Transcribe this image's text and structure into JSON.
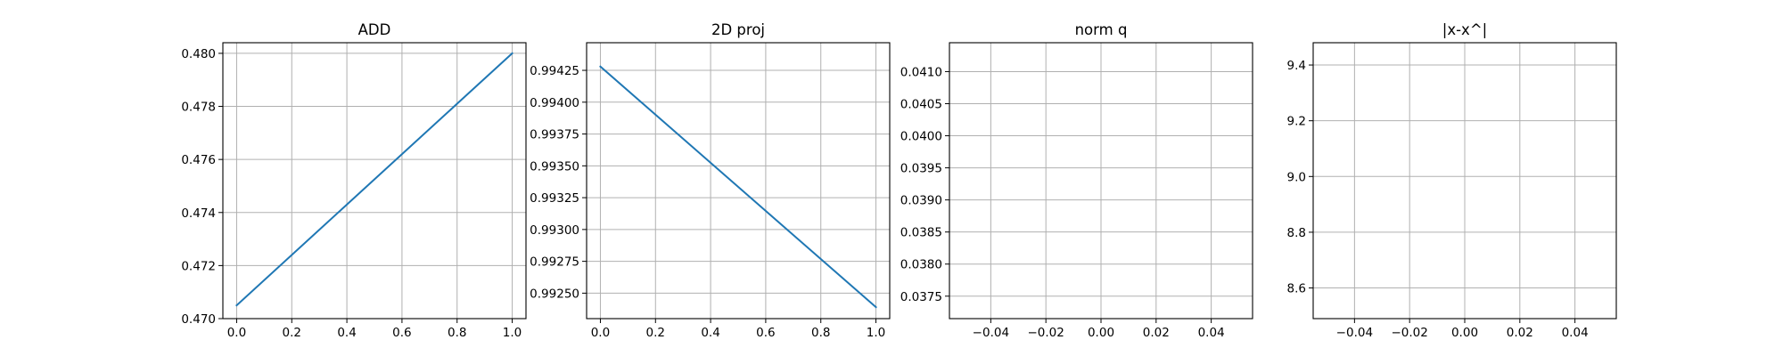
{
  "chart_data": [
    {
      "type": "line",
      "title": "ADD",
      "xlabel": "",
      "ylabel": "",
      "grid": true,
      "xlim": [
        -0.05,
        1.05
      ],
      "ylim": [
        0.47,
        0.4804
      ],
      "xticks": [
        0.0,
        0.2,
        0.4,
        0.6,
        0.8,
        1.0
      ],
      "xtick_labels": [
        "0.0",
        "0.2",
        "0.4",
        "0.6",
        "0.8",
        "1.0"
      ],
      "yticks": [
        0.47,
        0.472,
        0.474,
        0.476,
        0.478,
        0.48
      ],
      "ytick_labels": [
        "0.470",
        "0.472",
        "0.474",
        "0.476",
        "0.478",
        "0.480"
      ],
      "series": [
        {
          "color": "#1f77b4",
          "x": [
            0,
            1
          ],
          "y": [
            0.4705,
            0.48
          ]
        }
      ]
    },
    {
      "type": "line",
      "title": "2D proj",
      "xlabel": "",
      "ylabel": "",
      "grid": true,
      "xlim": [
        -0.05,
        1.05
      ],
      "ylim": [
        0.9923,
        0.994467
      ],
      "xticks": [
        0.0,
        0.2,
        0.4,
        0.6,
        0.8,
        1.0
      ],
      "xtick_labels": [
        "0.0",
        "0.2",
        "0.4",
        "0.6",
        "0.8",
        "1.0"
      ],
      "yticks": [
        0.9925,
        0.99275,
        0.993,
        0.99325,
        0.9935,
        0.99375,
        0.994,
        0.99425
      ],
      "ytick_labels": [
        "0.99250",
        "0.99275",
        "0.99300",
        "0.99325",
        "0.99350",
        "0.99375",
        "0.99400",
        "0.99425"
      ],
      "series": [
        {
          "color": "#1f77b4",
          "x": [
            0,
            1
          ],
          "y": [
            0.99428,
            0.99239
          ]
        }
      ]
    },
    {
      "type": "line",
      "title": "norm q",
      "xlabel": "",
      "ylabel": "",
      "grid": true,
      "xlim": [
        -0.055,
        0.055
      ],
      "ylim": [
        0.03715,
        0.04145
      ],
      "xticks": [
        -0.04,
        -0.02,
        0.0,
        0.02,
        0.04
      ],
      "xtick_labels": [
        "−0.04",
        "−0.02",
        "0.00",
        "0.02",
        "0.04"
      ],
      "yticks": [
        0.0375,
        0.038,
        0.0385,
        0.039,
        0.0395,
        0.04,
        0.0405,
        0.041
      ],
      "ytick_labels": [
        "0.0375",
        "0.0380",
        "0.0385",
        "0.0390",
        "0.0395",
        "0.0400",
        "0.0405",
        "0.0410"
      ],
      "series": []
    },
    {
      "type": "line",
      "title": "|x-x^|",
      "xlabel": "",
      "ylabel": "",
      "grid": true,
      "xlim": [
        -0.055,
        0.055
      ],
      "ylim": [
        8.49,
        9.48
      ],
      "xticks": [
        -0.04,
        -0.02,
        0.0,
        0.02,
        0.04
      ],
      "xtick_labels": [
        "−0.04",
        "−0.02",
        "0.00",
        "0.02",
        "0.04"
      ],
      "yticks": [
        8.6,
        8.8,
        9.0,
        9.2,
        9.4
      ],
      "ytick_labels": [
        "8.6",
        "8.8",
        "9.0",
        "9.2",
        "9.4"
      ],
      "series": []
    }
  ]
}
